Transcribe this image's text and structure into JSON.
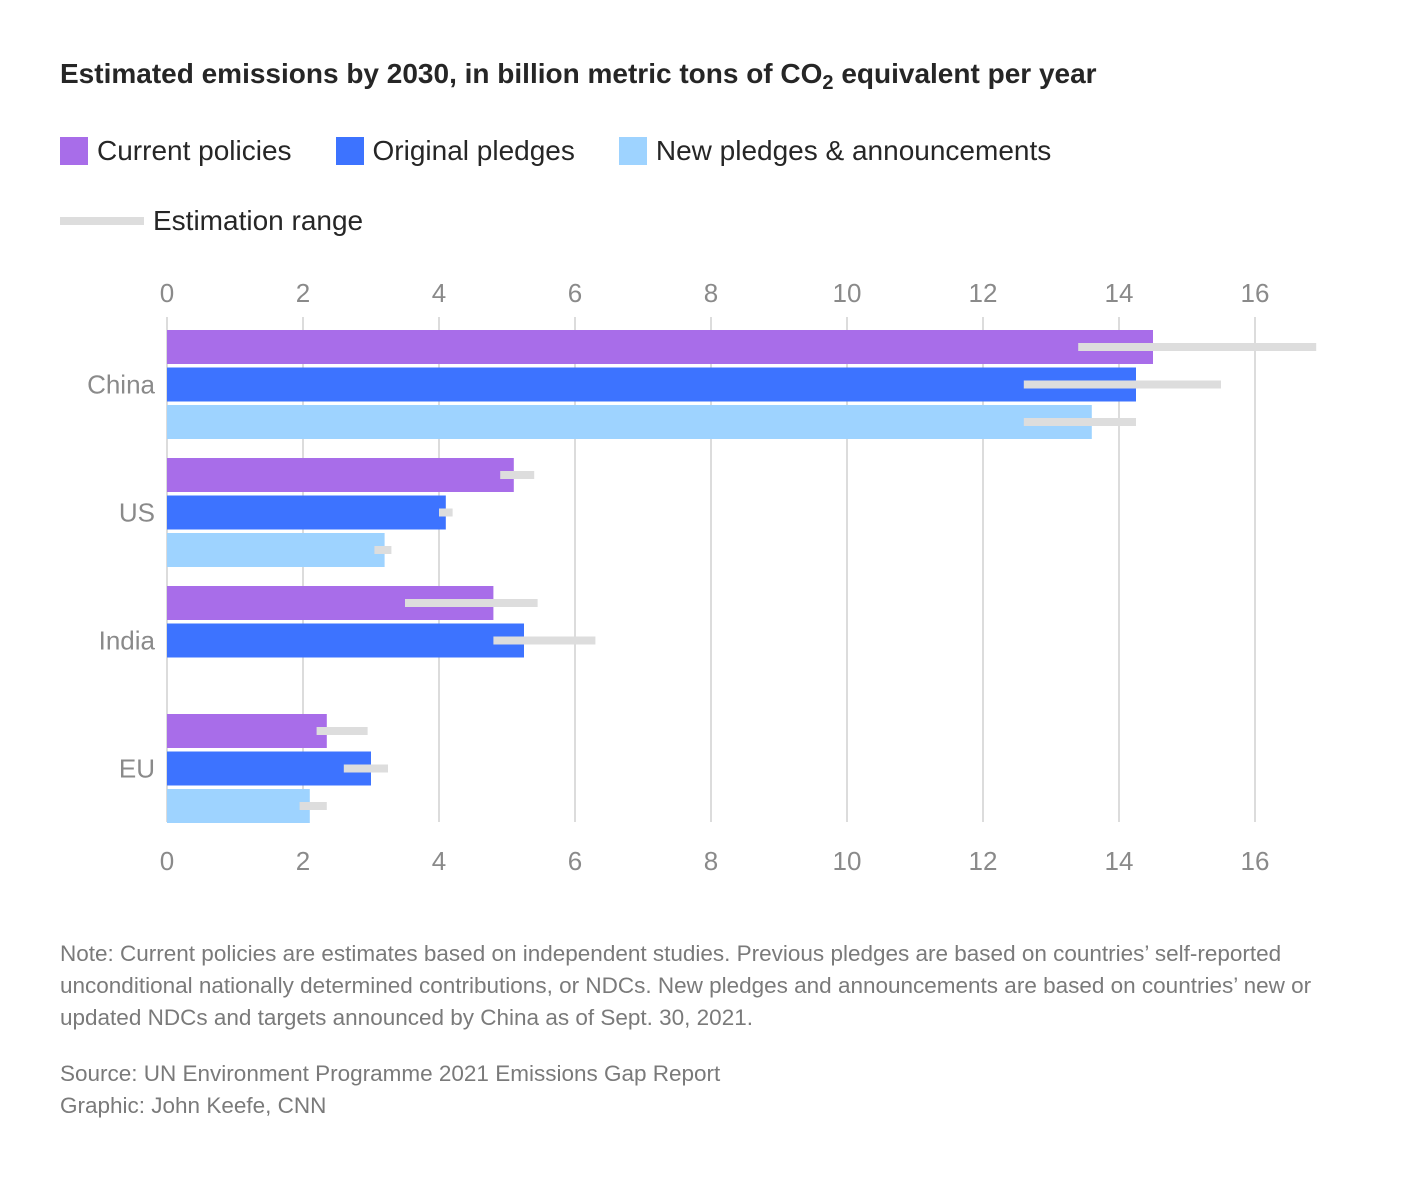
{
  "title": {
    "main": "Estimated emissions by 2030, in billion metric tons of CO",
    "subscript": "2",
    "suffix": " equivalent per year"
  },
  "legend": {
    "current": "Current policies",
    "original": "Original pledges",
    "new": "New pledges & announcements",
    "range": "Estimation range"
  },
  "colors": {
    "current": "#a86de9",
    "original": "#3d73ff",
    "new": "#9ed3ff",
    "range": "#dddddd",
    "grid": "#dcdcdc",
    "tick_text": "#8a8a8a"
  },
  "chart_data": {
    "type": "bar",
    "orientation": "horizontal",
    "title": "Estimated emissions by 2030, in billion metric tons of CO2 equivalent per year",
    "xlim": [
      0,
      16
    ],
    "xticks": [
      0,
      2,
      4,
      6,
      8,
      10,
      12,
      14,
      16
    ],
    "tick_labels": [
      "0",
      "2",
      "4",
      "6",
      "8",
      "10",
      "12",
      "14",
      "16"
    ],
    "categories": [
      "China",
      "US",
      "India",
      "EU"
    ],
    "series": [
      {
        "name": "Current policies",
        "key": "current",
        "values": [
          14.5,
          5.1,
          4.8,
          2.35
        ]
      },
      {
        "name": "Original pledges",
        "key": "original",
        "values": [
          14.25,
          4.1,
          5.25,
          3.0
        ]
      },
      {
        "name": "New pledges & announcements",
        "key": "new",
        "values": [
          13.6,
          3.2,
          null,
          2.1
        ]
      }
    ],
    "ranges": [
      {
        "series": "current",
        "values": [
          [
            13.4,
            16.9
          ],
          [
            4.9,
            5.4
          ],
          [
            3.5,
            5.45
          ],
          [
            2.2,
            2.95
          ]
        ]
      },
      {
        "series": "original",
        "values": [
          [
            12.6,
            15.5
          ],
          [
            4.0,
            4.2
          ],
          [
            4.8,
            6.3
          ],
          [
            2.6,
            3.25
          ]
        ]
      },
      {
        "series": "new",
        "values": [
          [
            12.6,
            14.25
          ],
          [
            3.05,
            3.3
          ],
          null,
          [
            1.95,
            2.35
          ]
        ]
      }
    ]
  },
  "note": "Note: Current policies are estimates based on independent studies. Previous pledges are based on countries’ self-reported unconditional nationally determined contributions, or NDCs. New pledges and announcements are based on countries’ new or updated NDCs and targets announced by China as of Sept. 30, 2021.",
  "source": {
    "line1": "Source: UN Environment Programme 2021 Emissions Gap Report",
    "line2": "Graphic: John Keefe, CNN"
  }
}
